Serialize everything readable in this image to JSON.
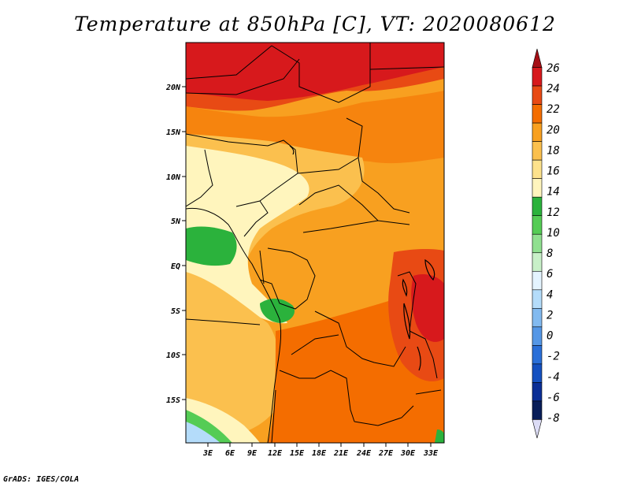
{
  "title": "Temperature at 850hPa [C], VT: 2020080612",
  "credit": "GrADS: IGES/COLA",
  "map": {
    "lat_labels": [
      "20N",
      "15N",
      "10N",
      "5N",
      "EQ",
      "5S",
      "10S",
      "15S"
    ],
    "lon_labels": [
      "3E",
      "6E",
      "9E",
      "12E",
      "15E",
      "18E",
      "21E",
      "24E",
      "27E",
      "30E",
      "33E"
    ]
  },
  "colorbar": {
    "levels": [
      "26",
      "24",
      "22",
      "20",
      "18",
      "16",
      "14",
      "12",
      "10",
      "8",
      "6",
      "4",
      "2",
      "0",
      "-2",
      "-4",
      "-6",
      "-8"
    ],
    "colors": [
      "#a50f15",
      "#d7191c",
      "#e84a14",
      "#f46d00",
      "#f8a020",
      "#fbc04e",
      "#fde28c",
      "#fff5bd",
      "#2bb23c",
      "#55cc55",
      "#90e090",
      "#c8f0c8",
      "#e4f4ff",
      "#b4dcfa",
      "#82baf0",
      "#5597e6",
      "#2a6fd8",
      "#1450c0",
      "#0a2e96",
      "#081d58",
      "#dcdcf5"
    ]
  },
  "colors": {
    "hot": "#d7191c",
    "warm": "#f46d00",
    "mild": "#fbc04e",
    "cool": "#fff5bd",
    "green": "#2bb23c"
  }
}
